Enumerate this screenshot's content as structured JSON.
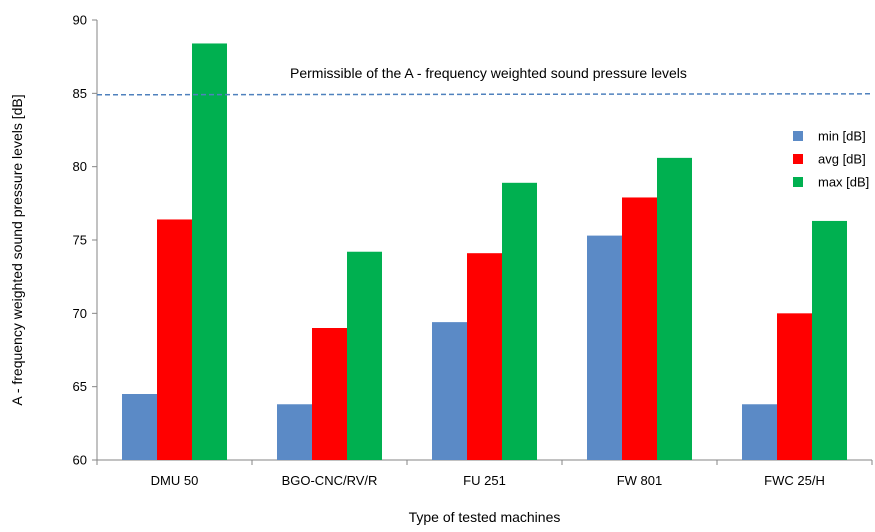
{
  "chart_data": {
    "type": "bar",
    "xlabel": "Type of tested machines",
    "ylabel": "A - frequency weighted sound pressure levels [dB]",
    "ylim": [
      60,
      90
    ],
    "yticks": [
      60,
      65,
      70,
      75,
      80,
      85,
      90
    ],
    "categories": [
      "DMU 50",
      "BGO-CNC/RV/R",
      "FU 251",
      "FW 801",
      "FWC 25/H"
    ],
    "series": [
      {
        "name": "min [dB]",
        "color": "#5B8AC6",
        "values": [
          64.5,
          63.8,
          69.4,
          75.3,
          63.8
        ]
      },
      {
        "name": "avg [dB]",
        "color": "#FF0000",
        "values": [
          76.4,
          69.0,
          74.1,
          77.9,
          70.0
        ]
      },
      {
        "name": "max [dB]",
        "color": "#00B050",
        "values": [
          88.4,
          74.2,
          78.9,
          80.6,
          76.3
        ]
      }
    ],
    "reference_line": {
      "label": "Permissible of the A - frequency weighted sound pressure levels",
      "value": 84.9,
      "color": "#4F81BD"
    },
    "legend_position": "right",
    "grid": false
  }
}
